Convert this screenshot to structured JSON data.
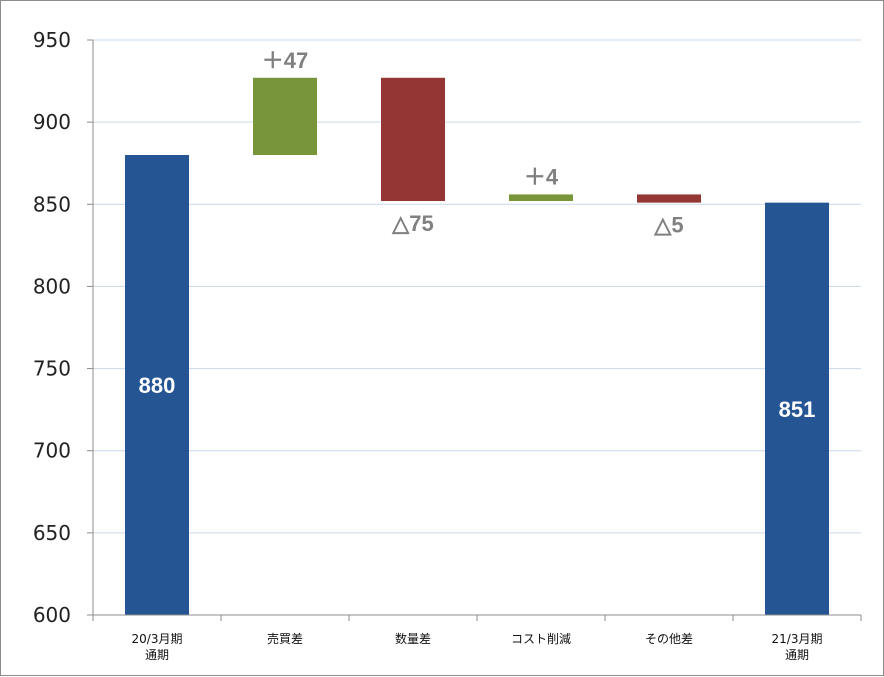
{
  "chart_data": {
    "type": "bar",
    "subtype": "waterfall",
    "title": "",
    "xlabel": "",
    "ylabel": "",
    "ylim": [
      600,
      950
    ],
    "yticks": [
      600,
      650,
      700,
      750,
      800,
      850,
      900,
      950
    ],
    "grid": true,
    "legend": "none",
    "categories": [
      [
        "20/3月期",
        "通期"
      ],
      [
        "売買差"
      ],
      [
        "数量差"
      ],
      [
        "コスト削減"
      ],
      [
        "その他差"
      ],
      [
        "21/3月期",
        "通期"
      ]
    ],
    "bars": [
      {
        "kind": "total",
        "base": 600,
        "top": 880,
        "label": "880"
      },
      {
        "kind": "increase",
        "base": 880,
        "top": 927,
        "label": "＋47"
      },
      {
        "kind": "decrease",
        "base": 852,
        "top": 927,
        "label": "△75"
      },
      {
        "kind": "increase",
        "base": 852,
        "top": 856,
        "label": "＋4"
      },
      {
        "kind": "decrease",
        "base": 851,
        "top": 856,
        "label": "△5"
      },
      {
        "kind": "total",
        "base": 600,
        "top": 851,
        "label": "851"
      }
    ],
    "colors": {
      "total": "#255592",
      "increase": "#789539",
      "decrease": "#943634",
      "total_label": "#ffffff",
      "change_label": "#808080",
      "grid": "#c9d9e9",
      "axis": "#8c8c8c"
    }
  }
}
